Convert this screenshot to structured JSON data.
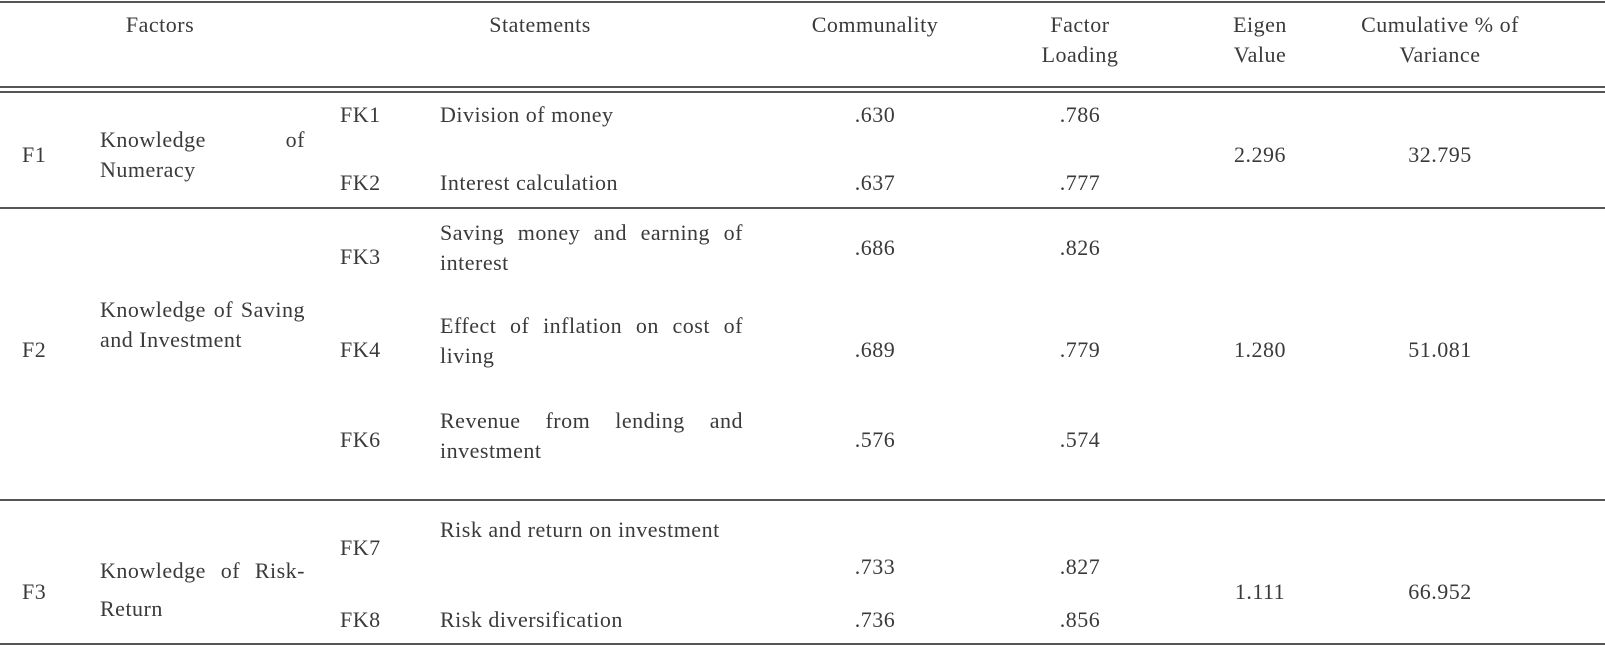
{
  "header": {
    "factors": "Factors",
    "statements": "Statements",
    "communality": "Communality",
    "factor_loading": "Factor Loading",
    "eigen_value": "Eigen Value",
    "cumulative": "Cumulative % of Variance"
  },
  "groups": [
    {
      "id": "F1",
      "name": "Knowledge of Numeracy",
      "eigen_value": "2.296",
      "cumulative": "32.795",
      "items": [
        {
          "code": "FK1",
          "statement": "Division of money",
          "communality": ".630",
          "loading": ".786"
        },
        {
          "code": "FK2",
          "statement": "Interest calculation",
          "communality": ".637",
          "loading": ".777"
        }
      ]
    },
    {
      "id": "F2",
      "name": "Knowledge of Saving and Investment",
      "eigen_value": "1.280",
      "cumulative": "51.081",
      "items": [
        {
          "code": "FK3",
          "statement": "Saving money and earning of interest",
          "communality": ".686",
          "loading": ".826"
        },
        {
          "code": "FK4",
          "statement": "Effect of inflation on cost of living",
          "communality": ".689",
          "loading": ".779"
        },
        {
          "code": "FK6",
          "statement": "Revenue from lending and investment",
          "communality": ".576",
          "loading": ".574"
        }
      ]
    },
    {
      "id": "F3",
      "name": "Knowledge of Risk-Return",
      "eigen_value": "1.111",
      "cumulative": "66.952",
      "items": [
        {
          "code": "FK7",
          "statement": "Risk and return on investment",
          "communality": ".733",
          "loading": ".827"
        },
        {
          "code": "FK8",
          "statement": "Risk diversification",
          "communality": ".736",
          "loading": ".856"
        }
      ]
    }
  ]
}
